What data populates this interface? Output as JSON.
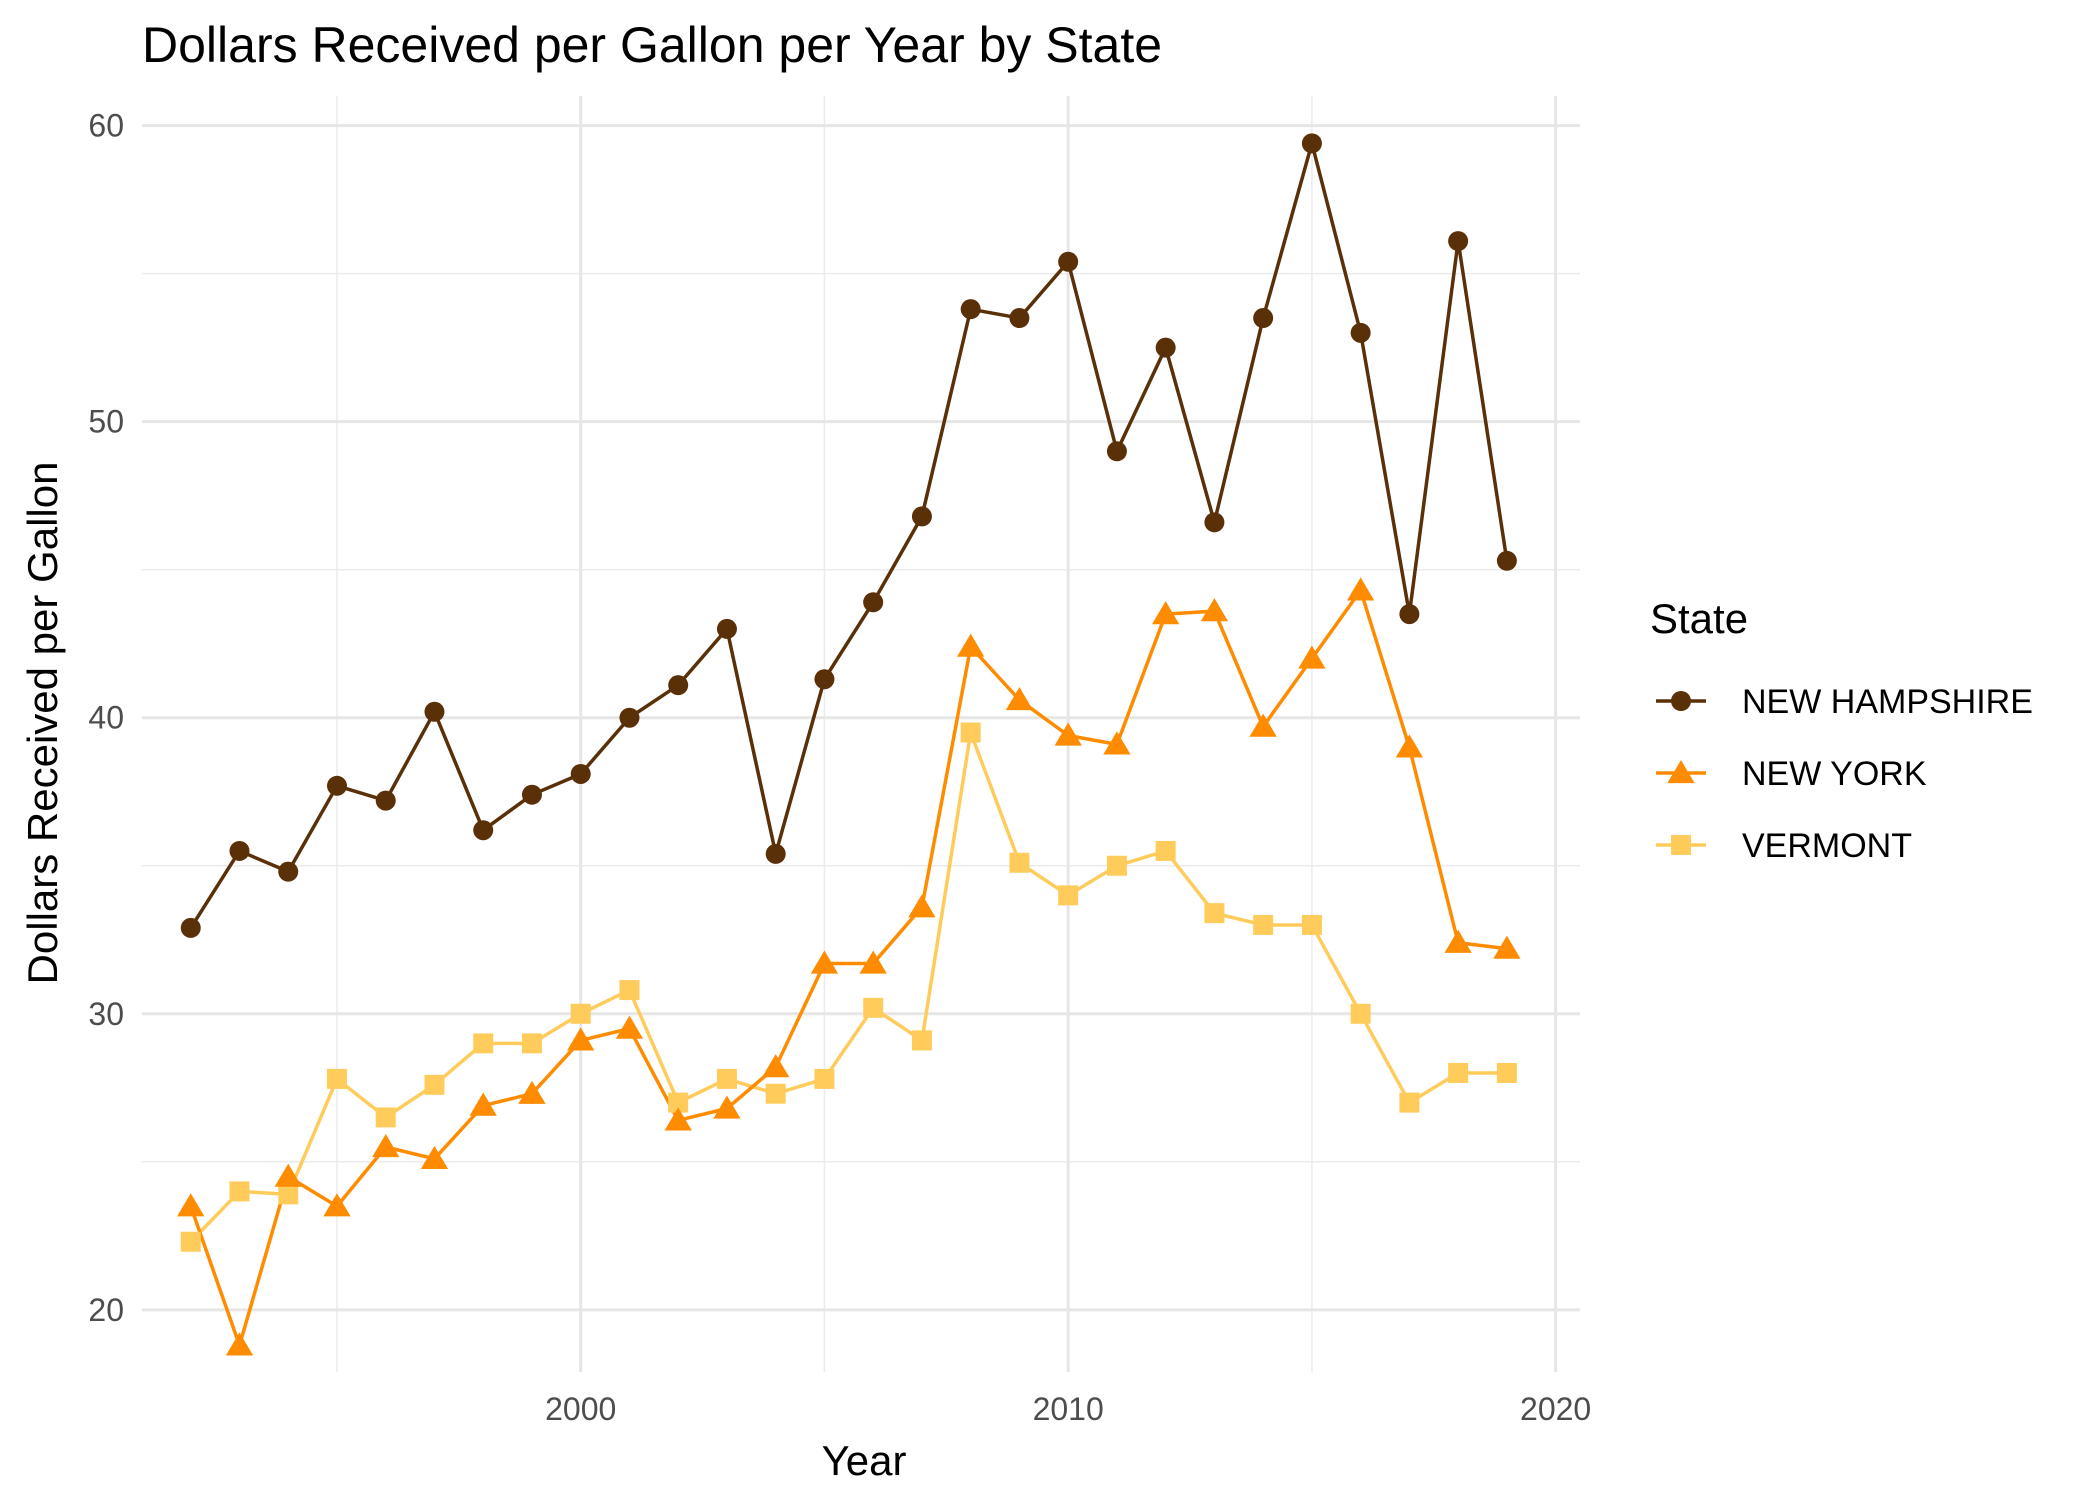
{
  "chart_data": {
    "type": "line",
    "title": "Dollars Received per Gallon per Year by State",
    "xlabel": "Year",
    "ylabel": "Dollars Received per Gallon",
    "xlim": [
      1991,
      2020.5
    ],
    "ylim": [
      17.9,
      61.0
    ],
    "x_ticks": [
      2000,
      2010,
      2020
    ],
    "y_ticks": [
      20,
      30,
      40,
      50,
      60
    ],
    "grid": true,
    "legend": {
      "title": "State",
      "position": "right"
    },
    "x": [
      1992,
      1993,
      1994,
      1995,
      1996,
      1997,
      1998,
      1999,
      2000,
      2001,
      2002,
      2003,
      2004,
      2005,
      2006,
      2007,
      2008,
      2009,
      2010,
      2011,
      2012,
      2013,
      2014,
      2015,
      2016,
      2017,
      2018,
      2019
    ],
    "series": [
      {
        "name": "NEW HAMPSHIRE",
        "color": "#5a3009",
        "marker": "circle",
        "values": [
          32.9,
          35.5,
          34.8,
          37.7,
          37.2,
          40.2,
          36.2,
          37.4,
          38.1,
          40.0,
          41.1,
          43.0,
          35.4,
          41.3,
          43.9,
          46.8,
          53.8,
          53.5,
          55.4,
          49.0,
          52.5,
          46.6,
          53.5,
          59.4,
          53.0,
          43.5,
          56.1,
          45.3
        ]
      },
      {
        "name": "NEW YORK",
        "color": "#ff8c00",
        "marker": "triangle",
        "values": [
          23.5,
          18.8,
          24.5,
          23.5,
          25.5,
          25.1,
          26.9,
          27.3,
          29.1,
          29.5,
          26.4,
          26.8,
          28.2,
          31.7,
          31.7,
          33.6,
          42.4,
          40.6,
          39.4,
          39.1,
          43.5,
          43.6,
          39.7,
          42.0,
          44.3,
          39.0,
          32.4,
          32.2
        ]
      },
      {
        "name": "VERMONT",
        "color": "#ffcc5c",
        "marker": "square",
        "values": [
          22.3,
          24.0,
          23.9,
          27.8,
          26.5,
          27.6,
          29.0,
          29.0,
          30.0,
          30.8,
          27.0,
          27.8,
          27.3,
          27.8,
          30.2,
          29.1,
          39.5,
          35.1,
          34.0,
          35.0,
          35.5,
          33.4,
          33.0,
          33.0,
          30.0,
          27.0,
          28.0,
          28.0
        ]
      }
    ]
  }
}
